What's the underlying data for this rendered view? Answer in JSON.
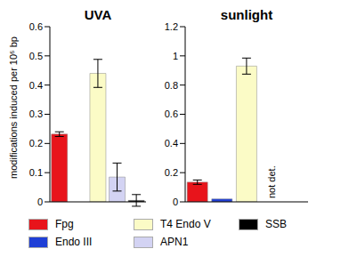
{
  "y_label": "modifications induced per 10⁶ bp",
  "chart_data": [
    {
      "type": "bar",
      "title": "UVA",
      "categories": [
        "Fpg",
        "Endo III",
        "T4 Endo V",
        "APN1",
        "SSB"
      ],
      "values": [
        0.232,
        0,
        0.44,
        0.085,
        0.005
      ],
      "errors": [
        0.008,
        null,
        0.048,
        0.048,
        0.02
      ],
      "colors": [
        "#e8141b",
        "#1f3fd6",
        "#fbfbc6",
        "#d3d3f3",
        "#000000"
      ],
      "ylim": [
        0,
        0.6
      ],
      "yticks": [
        0,
        0.1,
        0.2,
        0.3,
        0.4,
        0.5,
        0.6
      ],
      "tick_labels": "y"
    },
    {
      "type": "bar",
      "title": "sunlight",
      "categories": [
        "Fpg",
        "Endo III",
        "T4 Endo V",
        "APN1",
        "SSB"
      ],
      "values": [
        0.135,
        0.02,
        0.93,
        null,
        null
      ],
      "errors": [
        0.015,
        null,
        0.055,
        null,
        null
      ],
      "colors": [
        "#e8141b",
        "#1f3fd6",
        "#fbfbc6",
        "#d3d3f3",
        "#000000"
      ],
      "ylim": [
        0,
        1.2
      ],
      "yticks": [
        0,
        0.2,
        0.4,
        0.6,
        0.8,
        1,
        1.2
      ],
      "tick_labels": "y",
      "annotations": [
        {
          "text": "not det.",
          "x": "APN1"
        }
      ]
    }
  ]
}
